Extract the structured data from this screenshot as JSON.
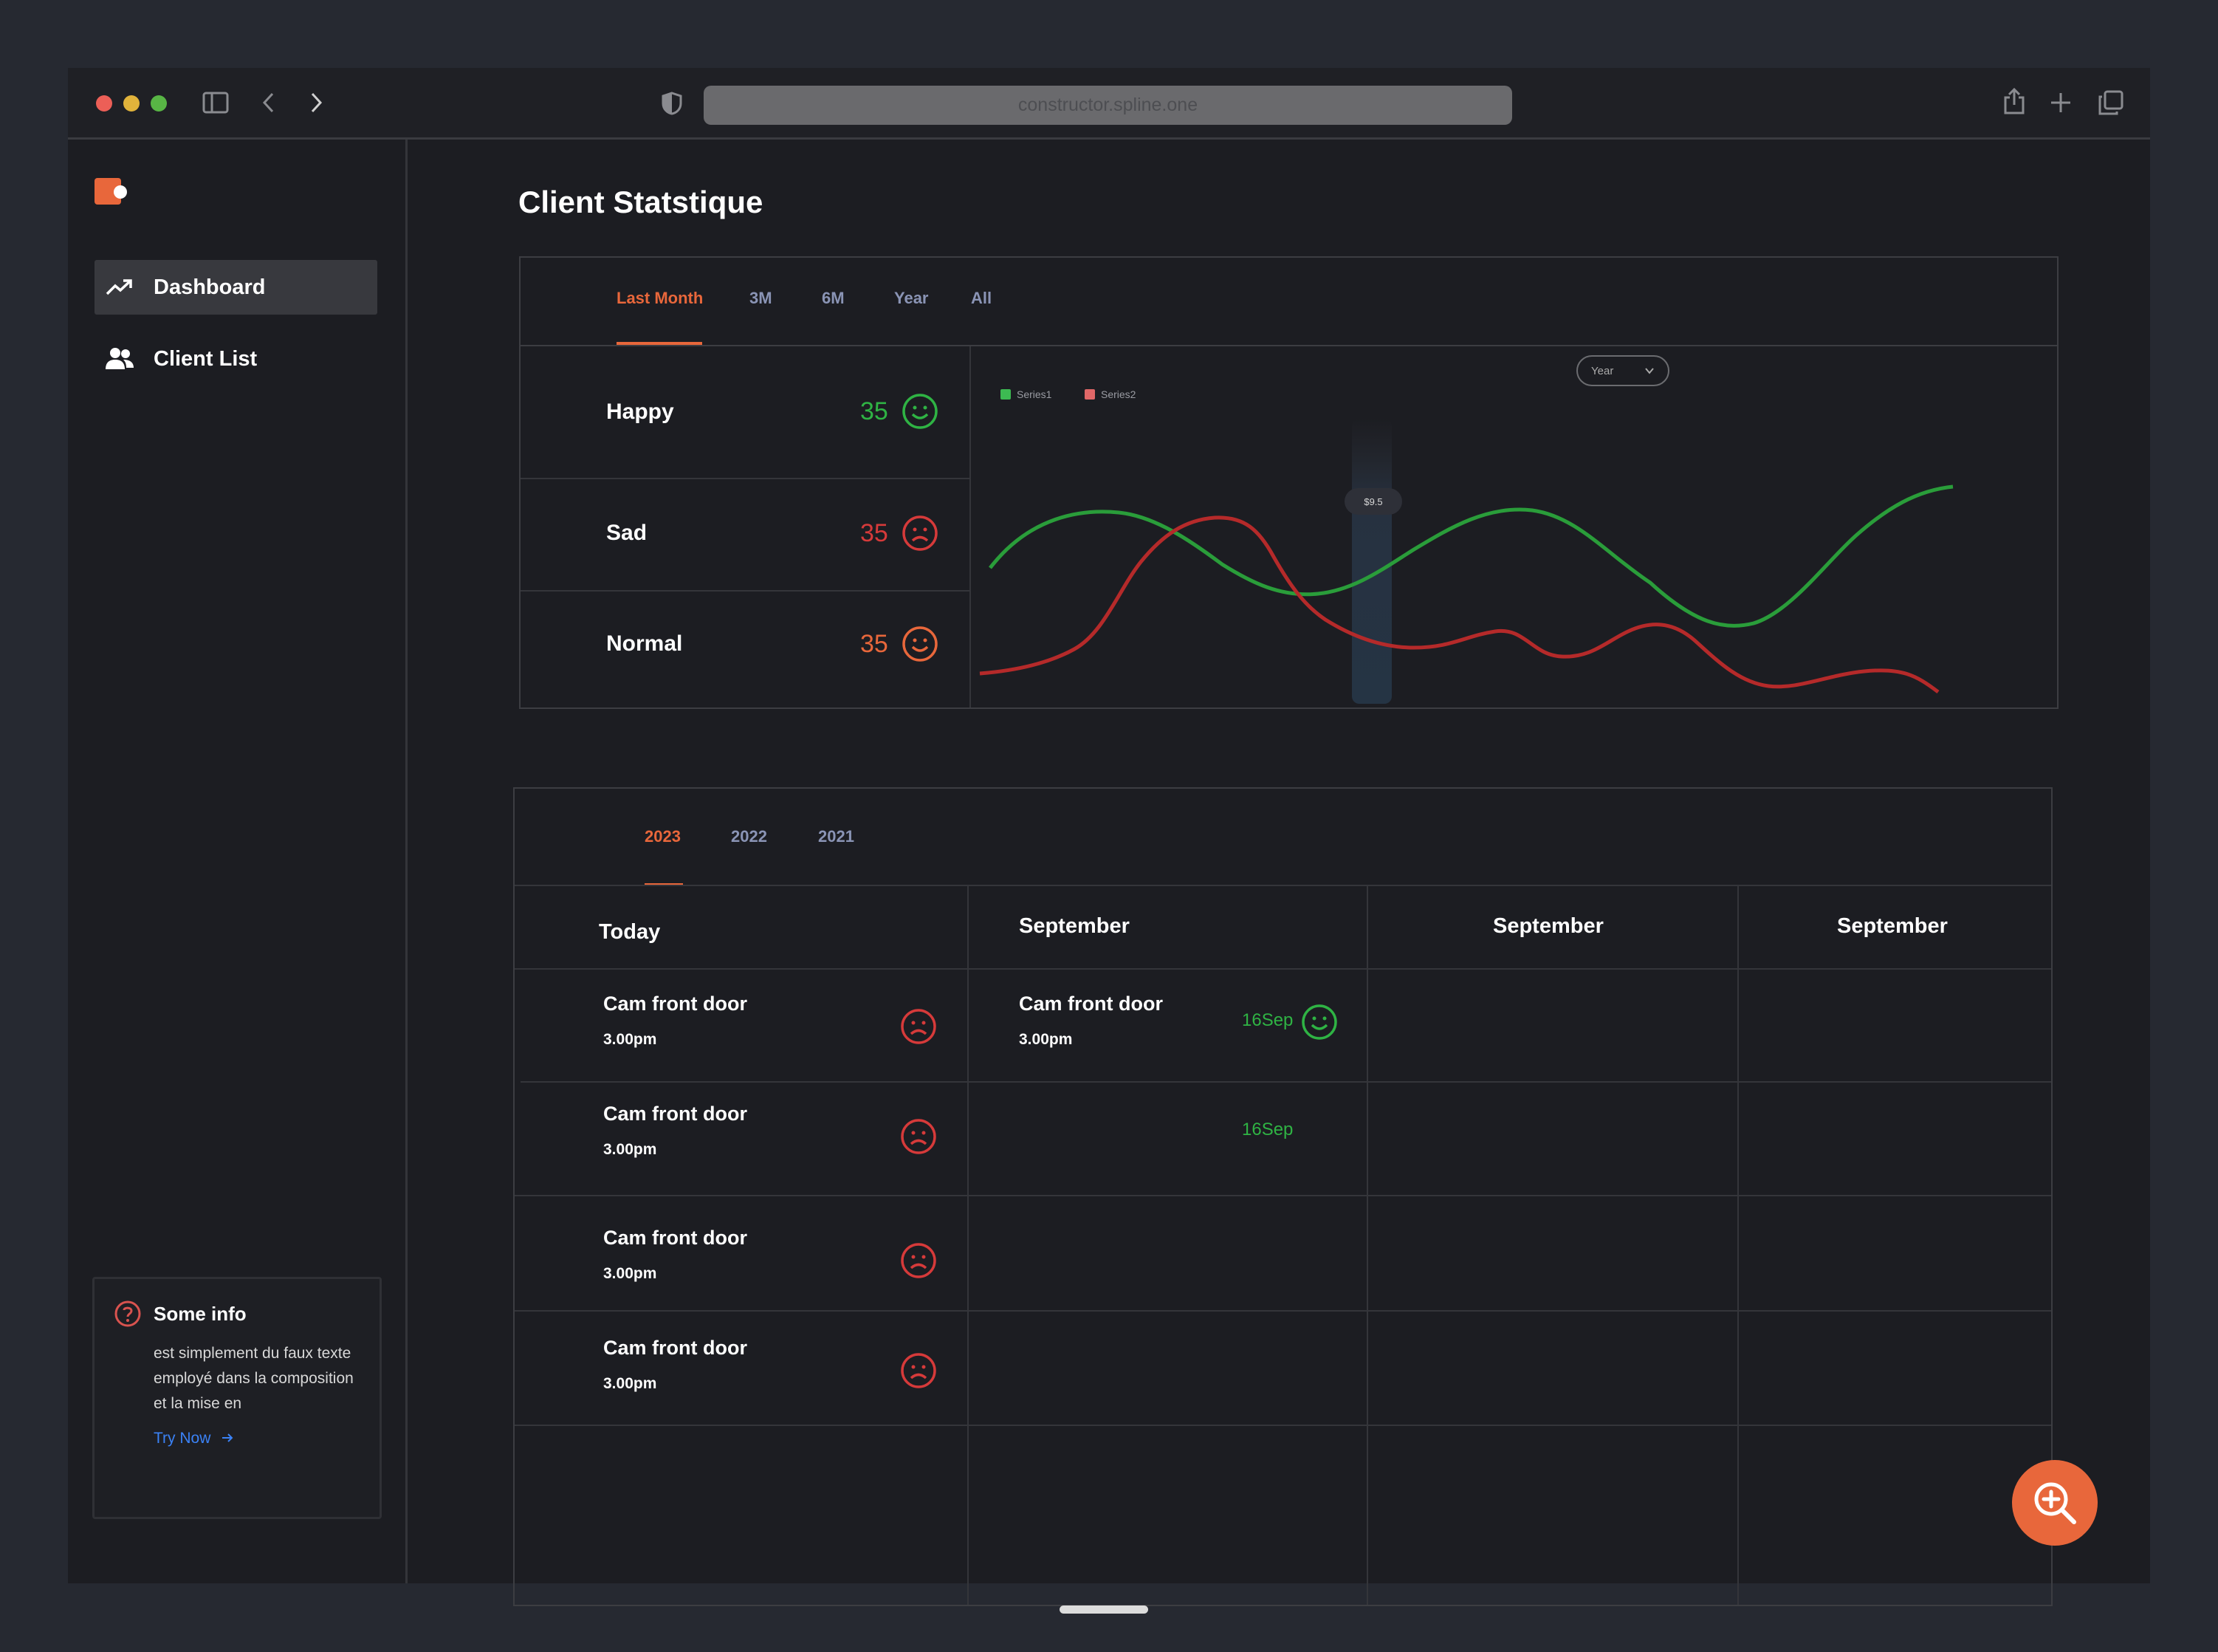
{
  "browser": {
    "url": "constructor.spline.one"
  },
  "sidebar": {
    "items": [
      {
        "label": "Dashboard",
        "icon": "trending-up-icon",
        "active": true
      },
      {
        "label": "Client List",
        "icon": "users-icon",
        "active": false
      }
    ],
    "info": {
      "title": "Some info",
      "body": "est simplement du faux texte employé dans la composition et la mise en",
      "link": "Try Now"
    }
  },
  "main": {
    "title": "Client Statstique",
    "range_tabs": [
      "Last Month",
      "3M",
      "6M",
      "Year",
      "All"
    ],
    "active_range": "Last Month",
    "moods": [
      {
        "label": "Happy",
        "value": "35",
        "color": "#2fb344",
        "face": "smile"
      },
      {
        "label": "Sad",
        "value": "35",
        "color": "#d63a3a",
        "face": "frown"
      },
      {
        "label": "Normal",
        "value": "35",
        "color": "#e8673b",
        "face": "smile"
      }
    ],
    "chart": {
      "dropdown": "Year",
      "tooltip": "$9.5"
    },
    "year_tabs": [
      "2023",
      "2022",
      "2021"
    ],
    "active_year": "2023",
    "table": {
      "headers": [
        "Today",
        "September",
        "September",
        "September"
      ],
      "rows": [
        {
          "title": "Cam front door",
          "time": "3.00pm"
        },
        {
          "title": "Cam front door",
          "time": "3.00pm"
        },
        {
          "title": "Cam front door",
          "time": "3.00pm"
        },
        {
          "title": "Cam front door",
          "time": "3.00pm"
        }
      ],
      "september_events": [
        {
          "title": "Cam front door",
          "time": "3.00pm",
          "date": "16Sep"
        },
        {
          "title": "",
          "time": "",
          "date": "16Sep"
        }
      ]
    }
  },
  "chart_data": {
    "type": "line",
    "legend": [
      "Series1",
      "Series2"
    ],
    "grid": false,
    "series": [
      {
        "name": "Series1",
        "color": "#2a9d3a"
      },
      {
        "name": "Series2",
        "color": "#b52a2a"
      }
    ],
    "tooltip_value": "$9.5"
  },
  "colors": {
    "accent": "#e8673b",
    "happy": "#2fb344",
    "sad": "#d63a3a"
  }
}
